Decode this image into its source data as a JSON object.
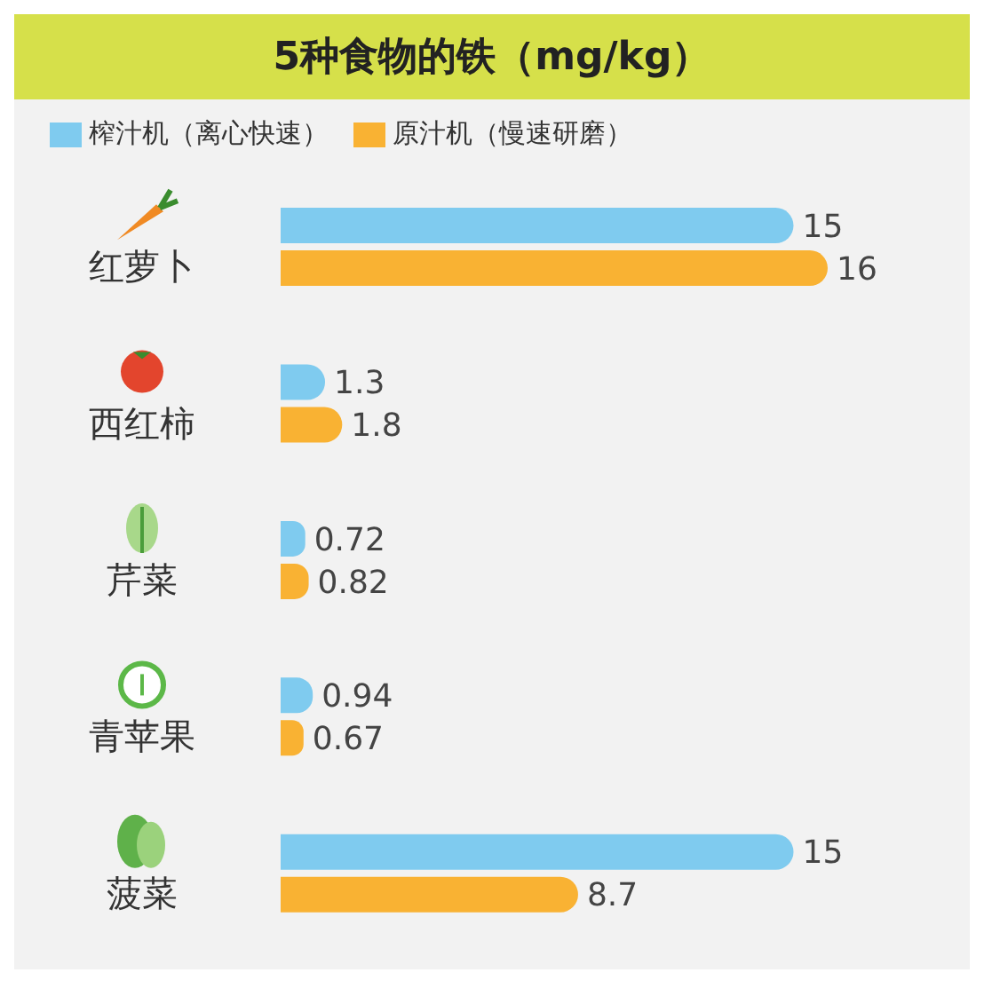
{
  "chart_data": {
    "type": "bar",
    "orientation": "horizontal",
    "title": "5种食物的铁（mg/kg）",
    "categories": [
      "红萝卜",
      "西红柿",
      "芹菜",
      "青苹果",
      "菠菜"
    ],
    "series": [
      {
        "name": "榨汁机（离心快速）",
        "color": "#7fcbef",
        "values": [
          15,
          1.3,
          0.72,
          0.94,
          15
        ]
      },
      {
        "name": "原汁机（慢速研磨）",
        "color": "#f9b233",
        "values": [
          16,
          1.8,
          0.82,
          0.67,
          8.7
        ]
      }
    ],
    "data_labels": true,
    "legend": "top left"
  }
}
